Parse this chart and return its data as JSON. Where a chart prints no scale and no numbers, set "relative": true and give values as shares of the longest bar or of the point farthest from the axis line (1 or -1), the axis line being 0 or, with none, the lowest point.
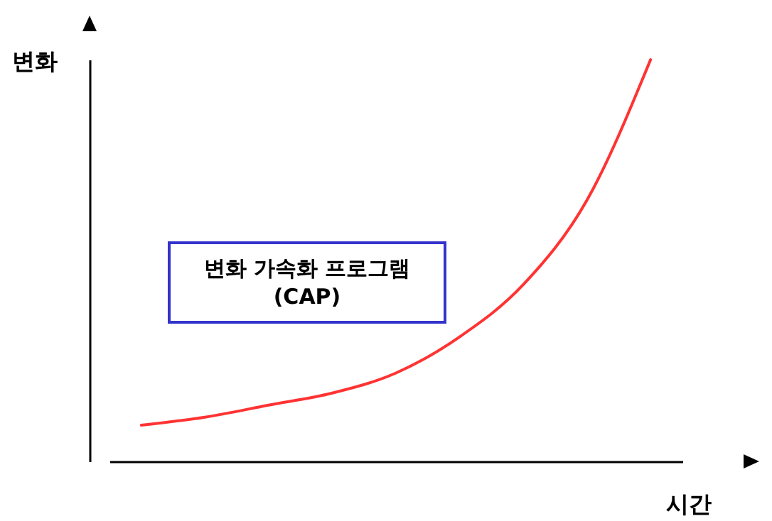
{
  "chart_data": {
    "type": "line",
    "relative": true,
    "xlabel": "시간",
    "ylabel": "변화",
    "categories": [
      null,
      null,
      null,
      null,
      null,
      null,
      null,
      null,
      null
    ],
    "series": [
      {
        "color": "#ff3333",
        "values": [
          0.09,
          0.11,
          0.14,
          0.17,
          0.22,
          0.31,
          0.44,
          0.65,
          1.0
        ]
      }
    ],
    "annotations": [
      "변화 가속화 프로그램\n(CAP)"
    ]
  }
}
